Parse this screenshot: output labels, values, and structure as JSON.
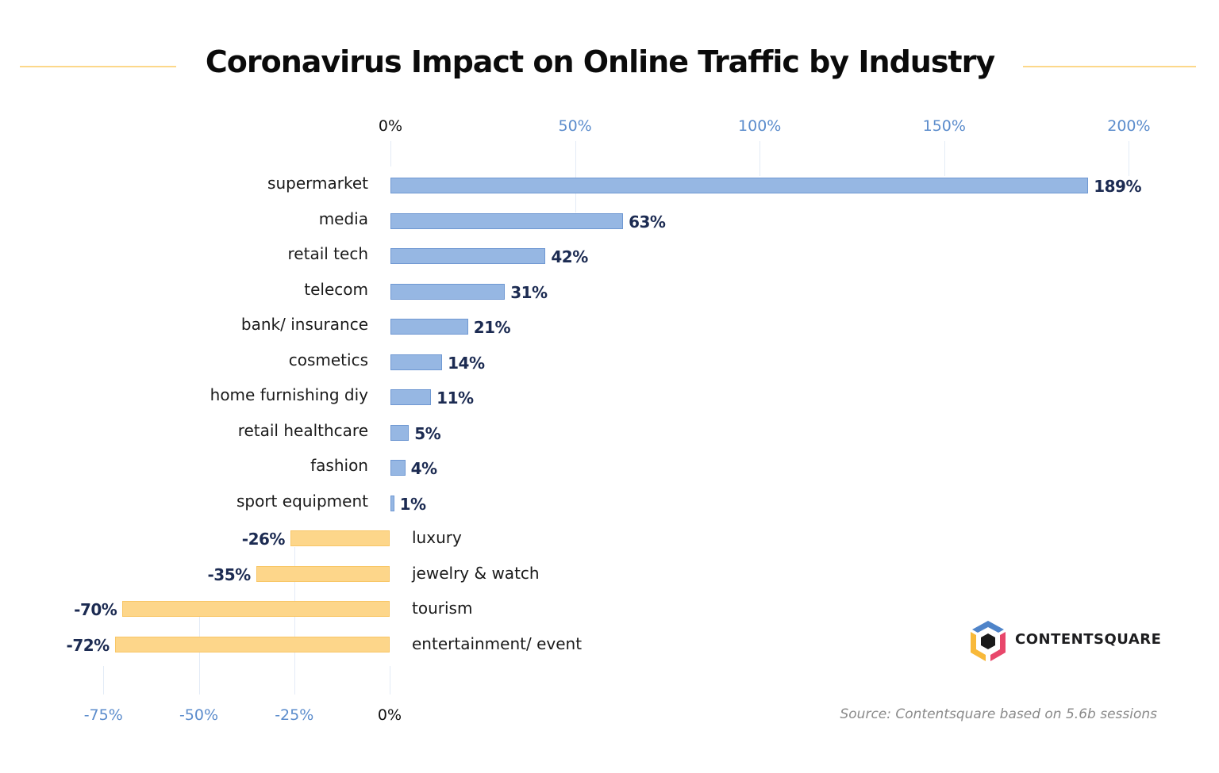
{
  "title": "Coronavirus Impact on Online Traffic by Industry",
  "source": "Source: Contentsquare based on 5.6b sessions",
  "logo": {
    "name": "CONTENTSQUARE",
    "colors": {
      "top": "#4f84c9",
      "left": "#f8b93a",
      "right": "#e8476b",
      "center": "#1a1a1a"
    }
  },
  "colors": {
    "positive_fill": "#96b7e3",
    "positive_border": "#6f98d2",
    "negative_fill": "#fdd68a",
    "negative_border": "#f8c666",
    "value_label": "#1c2b52",
    "tick_label": "#5b8ccc",
    "title_rule": "#fcd88a"
  },
  "top_axis": {
    "ticks": [
      "0%",
      "50%",
      "100%",
      "150%",
      "200%"
    ]
  },
  "bottom_axis": {
    "ticks": [
      "-75%",
      "-50%",
      "-25%",
      "0%"
    ]
  },
  "chart_data": {
    "type": "bar",
    "orientation": "horizontal",
    "title": "Coronavirus Impact on Online Traffic by Industry",
    "xlabel": "",
    "ylabel": "",
    "categories": [
      "supermarket",
      "media",
      "retail tech",
      "telecom",
      "bank/ insurance",
      "cosmetics",
      "home furnishing diy",
      "retail healthcare",
      "fashion",
      "sport equipment",
      "luxury",
      "jewelry & watch",
      "tourism",
      "entertainment/ event"
    ],
    "values": [
      189,
      63,
      42,
      31,
      21,
      14,
      11,
      5,
      4,
      1,
      -26,
      -35,
      -70,
      -72
    ],
    "labels": [
      "189%",
      "63%",
      "42%",
      "31%",
      "21%",
      "14%",
      "11%",
      "5%",
      "4%",
      "1%",
      "-26%",
      "-35%",
      "-70%",
      "-72%"
    ],
    "unit": "%",
    "positive_axis": {
      "range": [
        0,
        200
      ],
      "ticks": [
        0,
        50,
        100,
        150,
        200
      ],
      "position": "top"
    },
    "negative_axis": {
      "range": [
        -75,
        0
      ],
      "ticks": [
        -75,
        -50,
        -25,
        0
      ],
      "position": "bottom"
    },
    "grid": true,
    "legend": null,
    "annotation": "Source: Contentsquare based on 5.6b sessions"
  }
}
